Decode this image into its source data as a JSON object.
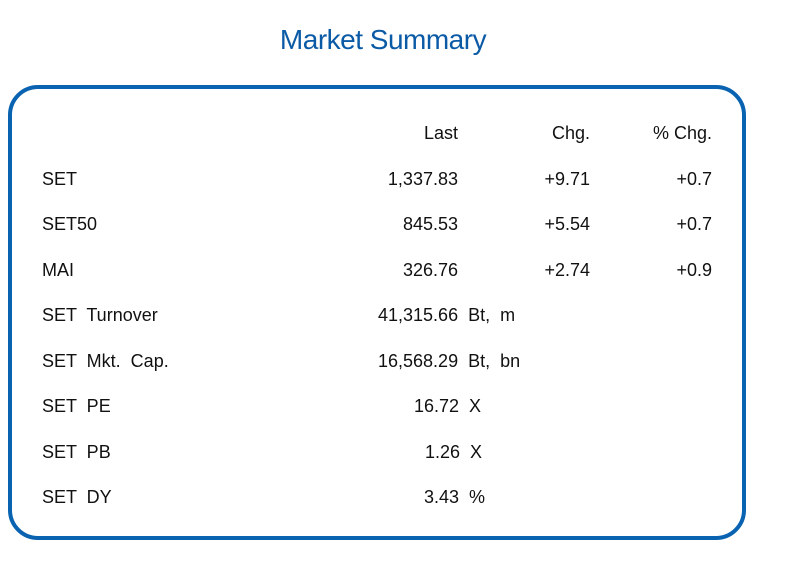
{
  "title": "Market Summary",
  "header": {
    "last": "Last",
    "chg": "Chg.",
    "pct_chg": "% Chg."
  },
  "indices": [
    {
      "name": "SET",
      "last": "1,337.83",
      "chg": "+9.71",
      "pct": "+0.7"
    },
    {
      "name": "SET50",
      "last": "845.53",
      "chg": "+5.54",
      "pct": "+0.7"
    },
    {
      "name": "MAI",
      "last": "326.76",
      "chg": "+2.74",
      "pct": "+0.9"
    }
  ],
  "stats": [
    {
      "name": "SET  Turnover",
      "value": "41,315.66  Bt,  m"
    },
    {
      "name": "SET  Mkt.  Cap.",
      "value": "16,568.29  Bt,  bn"
    },
    {
      "name": "SET  PE",
      "value": "16.72  X"
    },
    {
      "name": "SET  PB",
      "value": "1.26  X"
    },
    {
      "name": "SET  DY",
      "value": "3.43  %"
    }
  ],
  "colors": {
    "title": "#0b5aa6",
    "border": "#0a63b0"
  }
}
